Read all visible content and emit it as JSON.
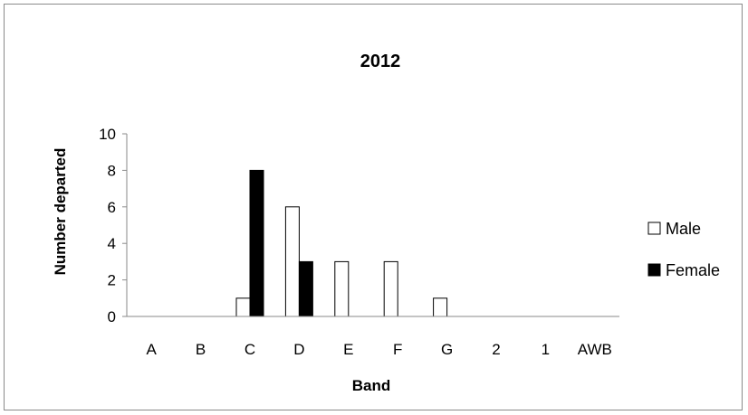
{
  "chart_data": {
    "type": "bar",
    "title": "2012",
    "xlabel": "Band",
    "ylabel": "Number departed",
    "categories": [
      "A",
      "B",
      "C",
      "D",
      "E",
      "F",
      "G",
      "2",
      "1",
      "AWB"
    ],
    "series": [
      {
        "name": "Male",
        "values": [
          0,
          0,
          1,
          6,
          3,
          3,
          1,
          0,
          0,
          0
        ],
        "color": "#ffffff",
        "stroke": "#000000"
      },
      {
        "name": "Female",
        "values": [
          0,
          0,
          8,
          3,
          0,
          0,
          0,
          0,
          0,
          0
        ],
        "color": "#000000",
        "stroke": "#000000"
      }
    ],
    "ylim": [
      0,
      10
    ],
    "yticks": [
      0,
      2,
      4,
      6,
      8,
      10
    ],
    "grid": false,
    "legend": "right"
  }
}
